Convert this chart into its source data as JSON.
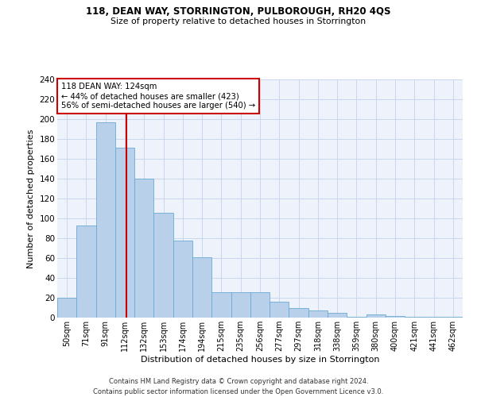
{
  "title1": "118, DEAN WAY, STORRINGTON, PULBOROUGH, RH20 4QS",
  "title2": "Size of property relative to detached houses in Storrington",
  "xlabel": "Distribution of detached houses by size in Storrington",
  "ylabel": "Number of detached properties",
  "categories": [
    "50sqm",
    "71sqm",
    "91sqm",
    "112sqm",
    "132sqm",
    "153sqm",
    "174sqm",
    "194sqm",
    "215sqm",
    "235sqm",
    "256sqm",
    "277sqm",
    "297sqm",
    "318sqm",
    "338sqm",
    "359sqm",
    "380sqm",
    "400sqm",
    "421sqm",
    "441sqm",
    "462sqm"
  ],
  "values": [
    20,
    93,
    197,
    171,
    140,
    106,
    78,
    61,
    26,
    26,
    26,
    16,
    10,
    7,
    5,
    1,
    3,
    2,
    1,
    1,
    1
  ],
  "bar_color": "#b8d0ea",
  "bar_edge_color": "#6aaad4",
  "vline_color": "#cc0000",
  "annotation_box_edge": "#cc0000",
  "annotation_bg": "#ffffff",
  "grid_color": "#c8d8ee",
  "background_color": "#eef3fb",
  "ylim": [
    0,
    240
  ],
  "yticks": [
    0,
    20,
    40,
    60,
    80,
    100,
    120,
    140,
    160,
    180,
    200,
    220,
    240
  ],
  "property_label": "118 DEAN WAY: 124sqm",
  "annotation_line1": "← 44% of detached houses are smaller (423)",
  "annotation_line2": "56% of semi-detached houses are larger (540) →",
  "footer1": "Contains HM Land Registry data © Crown copyright and database right 2024.",
  "footer2": "Contains public sector information licensed under the Open Government Licence v3.0."
}
